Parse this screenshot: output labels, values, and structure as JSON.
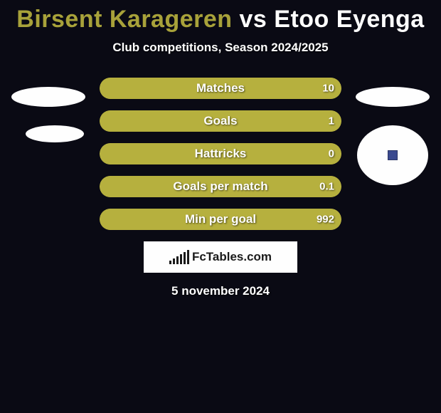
{
  "title": {
    "player1": "Birsent Karageren",
    "player2": "Etoo Eyenga",
    "player1_color": "#a8a23a",
    "player2_color": "#ffffff",
    "vs_text": "vs",
    "fontsize": 34
  },
  "subtitle": "Club competitions, Season 2024/2025",
  "colors": {
    "background": "#0a0a14",
    "player1_bar": "#a8a23a",
    "player2_bar": "#b6b03e",
    "track": "#a8a23a",
    "text_shadow": "rgba(0,0,0,0.6)",
    "white": "#ffffff"
  },
  "bars": [
    {
      "label": "Matches",
      "left_value": "",
      "right_value": "10",
      "left_pct": 0,
      "right_pct": 100
    },
    {
      "label": "Goals",
      "left_value": "",
      "right_value": "1",
      "left_pct": 0,
      "right_pct": 100
    },
    {
      "label": "Hattricks",
      "left_value": "",
      "right_value": "0",
      "left_pct": 0,
      "right_pct": 100
    },
    {
      "label": "Goals per match",
      "left_value": "",
      "right_value": "0.1",
      "left_pct": 0,
      "right_pct": 100
    },
    {
      "label": "Min per goal",
      "left_value": "",
      "right_value": "992",
      "left_pct": 0,
      "right_pct": 100
    }
  ],
  "bar_style": {
    "height": 30,
    "gap": 16,
    "radius": 15,
    "label_fontsize": 17,
    "value_fontsize": 15
  },
  "avatars": {
    "left": {
      "type": "two-ellipses",
      "color": "#fefefe"
    },
    "right": {
      "type": "ellipse-plus-circle",
      "color": "#fefefe",
      "badge_inner": "#3b4a8f"
    }
  },
  "logo": {
    "text": "FcTables.com",
    "box_bg": "#fefefe",
    "bar_heights": [
      5,
      8,
      11,
      14,
      17,
      20
    ]
  },
  "date": "5 november 2024"
}
